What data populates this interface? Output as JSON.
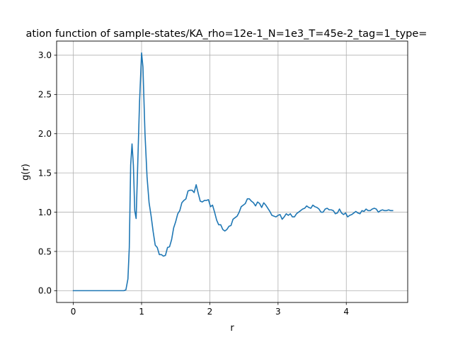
{
  "chart_data": {
    "type": "line",
    "title": "ation function of sample-states/KA_rho=12e-1_N=1e3_T=45e-2_tag=1_type=",
    "xlabel": "r",
    "ylabel": "g(r)",
    "xlim": [
      -0.245,
      4.9
    ],
    "ylim": [
      -0.15,
      3.18
    ],
    "grid": true,
    "x_ticks": [
      0,
      1,
      2,
      3,
      4
    ],
    "x_tick_labels": [
      "0",
      "1",
      "2",
      "3",
      "4"
    ],
    "y_ticks": [
      0.0,
      0.5,
      1.0,
      1.5,
      2.0,
      2.5,
      3.0
    ],
    "y_tick_labels": [
      "0.0",
      "0.5",
      "1.0",
      "1.5",
      "2.0",
      "2.5",
      "3.0"
    ],
    "line_color": "#1f77b4",
    "series": [
      {
        "x": [
          0.0,
          0.1,
          0.2,
          0.3,
          0.4,
          0.5,
          0.6,
          0.7,
          0.74,
          0.77,
          0.8,
          0.82,
          0.84,
          0.86,
          0.88,
          0.9,
          0.92,
          0.94,
          0.97,
          1.0,
          1.02,
          1.05,
          1.08,
          1.11,
          1.14,
          1.17,
          1.2,
          1.23,
          1.26,
          1.29,
          1.32,
          1.35,
          1.38,
          1.41,
          1.44,
          1.47,
          1.5,
          1.53,
          1.56,
          1.59,
          1.62,
          1.65,
          1.68,
          1.71,
          1.74,
          1.77,
          1.8,
          1.83,
          1.86,
          1.89,
          1.92,
          1.95,
          1.98,
          2.01,
          2.04,
          2.07,
          2.1,
          2.13,
          2.16,
          2.19,
          2.22,
          2.25,
          2.28,
          2.31,
          2.34,
          2.37,
          2.4,
          2.43,
          2.46,
          2.49,
          2.52,
          2.55,
          2.58,
          2.61,
          2.64,
          2.67,
          2.7,
          2.73,
          2.76,
          2.79,
          2.82,
          2.85,
          2.88,
          2.91,
          2.94,
          2.97,
          3.0,
          3.03,
          3.06,
          3.09,
          3.12,
          3.15,
          3.18,
          3.21,
          3.24,
          3.27,
          3.3,
          3.33,
          3.36,
          3.39,
          3.42,
          3.45,
          3.48,
          3.51,
          3.54,
          3.57,
          3.6,
          3.63,
          3.66,
          3.69,
          3.72,
          3.75,
          3.78,
          3.81,
          3.84,
          3.87,
          3.9,
          3.93,
          3.96,
          3.99,
          4.02,
          4.05,
          4.08,
          4.11,
          4.14,
          4.17,
          4.2,
          4.23,
          4.26,
          4.29,
          4.32,
          4.35,
          4.38,
          4.41,
          4.44,
          4.47,
          4.5,
          4.53,
          4.56,
          4.59,
          4.62,
          4.65,
          4.68
        ],
        "values": [
          0.0,
          0.0,
          0.0,
          0.0,
          0.0,
          0.0,
          0.0,
          0.0,
          0.0,
          0.01,
          0.15,
          0.55,
          1.6,
          1.87,
          1.6,
          1.02,
          0.92,
          1.5,
          2.4,
          3.03,
          2.85,
          2.0,
          1.45,
          1.12,
          0.95,
          0.75,
          0.58,
          0.55,
          0.46,
          0.46,
          0.44,
          0.45,
          0.55,
          0.56,
          0.65,
          0.8,
          0.88,
          0.98,
          1.02,
          1.12,
          1.15,
          1.17,
          1.27,
          1.28,
          1.28,
          1.25,
          1.35,
          1.24,
          1.14,
          1.13,
          1.15,
          1.15,
          1.16,
          1.07,
          1.09,
          1.0,
          0.9,
          0.84,
          0.84,
          0.78,
          0.76,
          0.78,
          0.82,
          0.83,
          0.91,
          0.93,
          0.95,
          1.0,
          1.07,
          1.09,
          1.11,
          1.17,
          1.17,
          1.14,
          1.12,
          1.08,
          1.13,
          1.11,
          1.06,
          1.12,
          1.09,
          1.05,
          1.01,
          0.96,
          0.95,
          0.94,
          0.96,
          0.97,
          0.91,
          0.94,
          0.98,
          0.96,
          0.98,
          0.94,
          0.94,
          0.98,
          1.0,
          1.02,
          1.04,
          1.05,
          1.08,
          1.06,
          1.05,
          1.09,
          1.07,
          1.06,
          1.04,
          1.0,
          1.0,
          1.04,
          1.05,
          1.03,
          1.03,
          1.02,
          0.98,
          0.99,
          1.04,
          0.99,
          0.97,
          0.99,
          0.94,
          0.96,
          0.97,
          0.99,
          1.01,
          0.99,
          0.98,
          1.02,
          1.01,
          1.04,
          1.02,
          1.02,
          1.04,
          1.05,
          1.04,
          1.0,
          1.02,
          1.03,
          1.02,
          1.02,
          1.03,
          1.02,
          1.02
        ]
      }
    ]
  }
}
